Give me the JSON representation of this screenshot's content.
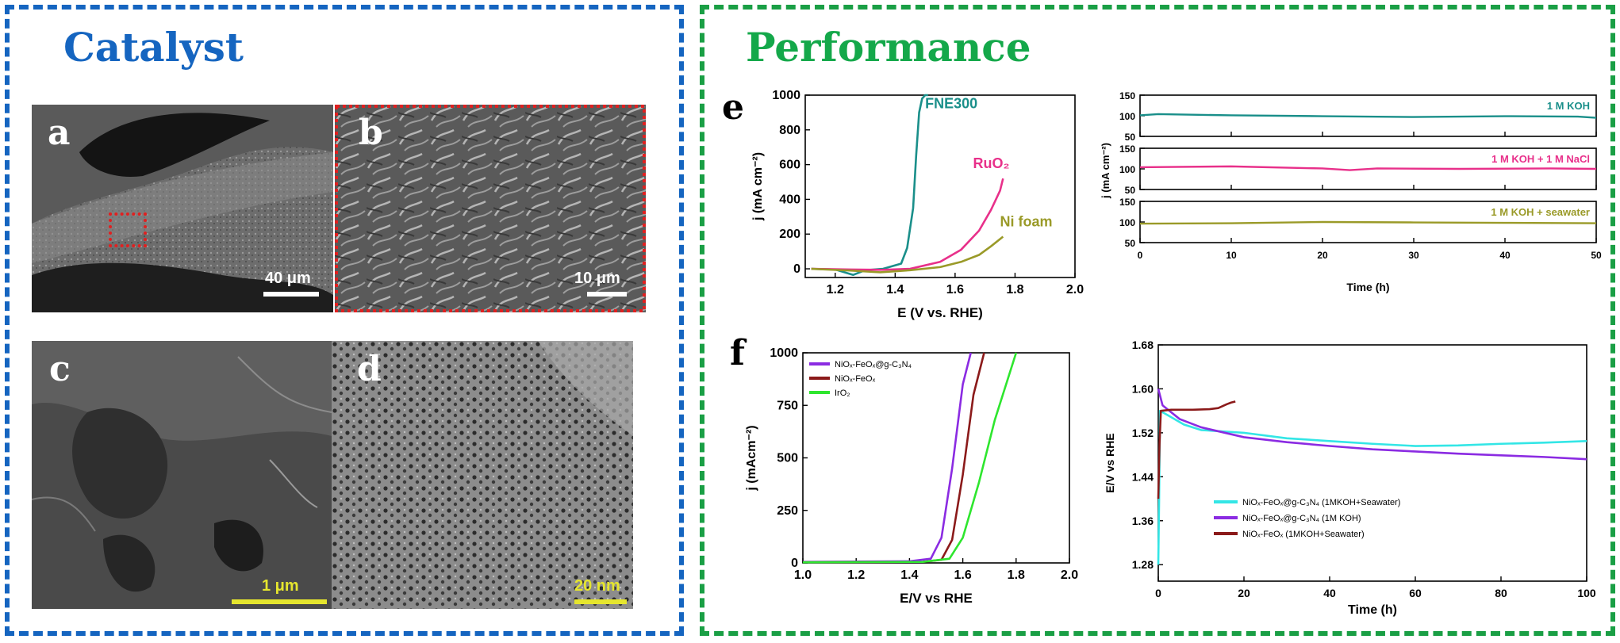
{
  "catalyst": {
    "title": "Catalyst",
    "panels": [
      {
        "label": "a",
        "scale_bar": "40 μm"
      },
      {
        "label": "b",
        "scale_bar": "10 μm"
      },
      {
        "label": "c",
        "scale_bar": "1 μm"
      },
      {
        "label": "d",
        "scale_bar": "20 nm"
      }
    ]
  },
  "performance": {
    "title": "Performance",
    "labels": {
      "e": "e",
      "f": "f"
    }
  },
  "colors": {
    "catalyst_border": "#1565c0",
    "performance_border": "#1a9f45",
    "scale_white": "#ffffff",
    "scale_yellow": "#e6e62e",
    "zoom_box": "#e02020"
  },
  "chart_data": [
    {
      "type": "line",
      "panel": "e-left",
      "xlabel": "E (V vs. RHE)",
      "ylabel": "j (mA cm⁻²)",
      "xlim": [
        1.1,
        2.0
      ],
      "ylim": [
        -50,
        1000
      ],
      "xticks": [
        "1.2",
        "1.4",
        "1.6",
        "1.8",
        "2.0"
      ],
      "yticks": [
        "0",
        "200",
        "400",
        "600",
        "800",
        "1000"
      ],
      "series": [
        {
          "name": "FNE300",
          "color": "#1a8f8a",
          "x": [
            1.12,
            1.2,
            1.26,
            1.3,
            1.36,
            1.42,
            1.44,
            1.46,
            1.47,
            1.48,
            1.49,
            1.5,
            1.51
          ],
          "y": [
            0,
            -4,
            -35,
            -8,
            0,
            30,
            120,
            350,
            650,
            900,
            980,
            1000,
            1000
          ]
        },
        {
          "name": "RuO₂",
          "color": "#e8308a",
          "x": [
            1.12,
            1.25,
            1.35,
            1.45,
            1.55,
            1.62,
            1.68,
            1.72,
            1.75,
            1.76
          ],
          "y": [
            0,
            -4,
            -6,
            0,
            40,
            110,
            220,
            340,
            450,
            520
          ]
        },
        {
          "name": "Ni foam",
          "color": "#9a9a28",
          "x": [
            1.12,
            1.25,
            1.35,
            1.45,
            1.55,
            1.62,
            1.68,
            1.72,
            1.76
          ],
          "y": [
            0,
            -10,
            -20,
            -8,
            10,
            40,
            80,
            130,
            185
          ]
        }
      ]
    },
    {
      "type": "line",
      "panel": "e-right",
      "xlabel": "Time (h)",
      "ylabel": "j (mA cm⁻²)",
      "xlim": [
        0,
        50
      ],
      "xticks": [
        "0",
        "10",
        "20",
        "30",
        "40",
        "50"
      ],
      "subplots": [
        {
          "name": "1 M KOH",
          "color": "#1a8f8a",
          "ylim": [
            50,
            150
          ],
          "yticks": [
            "50",
            "100",
            "150"
          ],
          "x": [
            0,
            2,
            10,
            20,
            30,
            40,
            48,
            50
          ],
          "y": [
            101,
            104,
            101,
            99,
            97,
            99,
            98,
            95
          ]
        },
        {
          "name": "1 M KOH + 1 M NaCl",
          "color": "#e8308a",
          "ylim": [
            50,
            150
          ],
          "yticks": [
            "50",
            "100",
            "150"
          ],
          "x": [
            0,
            10,
            20,
            23,
            26,
            35,
            45,
            50
          ],
          "y": [
            104,
            106,
            101,
            97,
            101,
            100,
            101,
            100
          ]
        },
        {
          "name": "1 M KOH + seawater",
          "color": "#9a9a28",
          "ylim": [
            50,
            150
          ],
          "yticks": [
            "50",
            "100",
            "150"
          ],
          "x": [
            0,
            10,
            20,
            30,
            40,
            50
          ],
          "y": [
            96,
            97,
            100,
            99,
            98,
            97
          ]
        }
      ]
    },
    {
      "type": "line",
      "panel": "f-left",
      "xlabel": "E/V vs RHE",
      "ylabel": "j (mAcm⁻²)",
      "xlim": [
        1.0,
        2.0
      ],
      "ylim": [
        0,
        1000
      ],
      "xticks": [
        "1.0",
        "1.2",
        "1.4",
        "1.6",
        "1.8",
        "2.0"
      ],
      "yticks": [
        "0",
        "250",
        "500",
        "750",
        "1000"
      ],
      "series": [
        {
          "name": "NiOₓ-FeOₓ@g-C₃N₄",
          "color": "#8b2be2",
          "x": [
            1.0,
            1.4,
            1.48,
            1.52,
            1.56,
            1.6,
            1.63
          ],
          "y": [
            5,
            8,
            20,
            120,
            450,
            850,
            1000
          ]
        },
        {
          "name": "NiOₓ-FeOₓ",
          "color": "#8b1a1a",
          "x": [
            1.0,
            1.45,
            1.52,
            1.56,
            1.6,
            1.64,
            1.68
          ],
          "y": [
            3,
            5,
            15,
            110,
            420,
            800,
            1000
          ]
        },
        {
          "name": "IrO₂",
          "color": "#2ee62e",
          "x": [
            1.0,
            1.45,
            1.55,
            1.6,
            1.66,
            1.72,
            1.8
          ],
          "y": [
            3,
            5,
            20,
            120,
            380,
            680,
            1000
          ]
        }
      ]
    },
    {
      "type": "line",
      "panel": "f-right",
      "xlabel": "Time (h)",
      "ylabel": "E/V vs RHE",
      "xlim": [
        0,
        100
      ],
      "ylim": [
        1.25,
        1.68
      ],
      "xticks": [
        "0",
        "20",
        "40",
        "60",
        "80",
        "100"
      ],
      "yticks": [
        "1.28",
        "1.36",
        "1.44",
        "1.52",
        "1.60",
        "1.68"
      ],
      "series": [
        {
          "name": "NiOₓ-FeOₓ@g-C₃N₄ (1MKOH+Seawater)",
          "color": "#33e6e6",
          "x": [
            0,
            0.2,
            0.4,
            2,
            6,
            10,
            20,
            30,
            40,
            50,
            60,
            70,
            80,
            90,
            100
          ],
          "y": [
            1.28,
            1.4,
            1.56,
            1.553,
            1.535,
            1.525,
            1.52,
            1.51,
            1.505,
            1.5,
            1.496,
            1.497,
            1.5,
            1.502,
            1.505
          ]
        },
        {
          "name": "NiOₓ-FeOₓ@g-C₃N₄ (1M KOH)",
          "color": "#8b2be2",
          "x": [
            0,
            1,
            5,
            10,
            20,
            30,
            40,
            50,
            60,
            70,
            80,
            90,
            100
          ],
          "y": [
            1.6,
            1.57,
            1.545,
            1.53,
            1.512,
            1.503,
            1.496,
            1.49,
            1.486,
            1.482,
            1.479,
            1.476,
            1.472
          ]
        },
        {
          "name": "NiOₓ-FeOₓ (1MKOH+Seawater)",
          "color": "#8b1a1a",
          "x": [
            0,
            0.3,
            0.6,
            3,
            8,
            12,
            14,
            16,
            17,
            18
          ],
          "y": [
            1.4,
            1.5,
            1.56,
            1.562,
            1.562,
            1.563,
            1.565,
            1.572,
            1.575,
            1.577
          ]
        }
      ]
    }
  ]
}
